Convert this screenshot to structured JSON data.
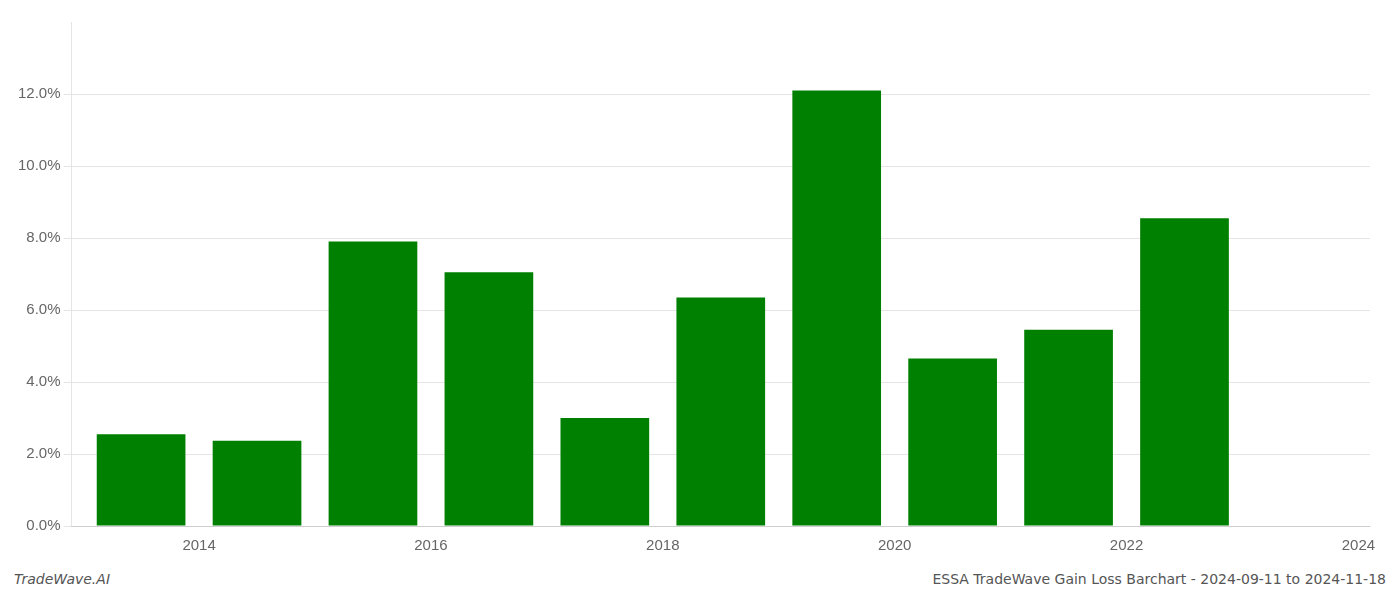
{
  "chart_data": {
    "type": "bar",
    "x": [
      2014,
      2015,
      2016,
      2017,
      2018,
      2019,
      2020,
      2021,
      2022,
      2023
    ],
    "values": [
      0.0255,
      0.0237,
      0.079,
      0.0705,
      0.03,
      0.0635,
      0.121,
      0.0465,
      0.0545,
      0.0855
    ],
    "color": "#008000",
    "xlim": [
      2013.4,
      2024.6
    ],
    "xticks": [
      {
        "value": 2014.5,
        "label": "2014"
      },
      {
        "value": 2016.5,
        "label": "2016"
      },
      {
        "value": 2018.5,
        "label": "2018"
      },
      {
        "value": 2020.5,
        "label": "2020"
      },
      {
        "value": 2022.5,
        "label": "2022"
      },
      {
        "value": 2024.5,
        "label": "2024"
      }
    ],
    "ylim": [
      0,
      0.14
    ],
    "yticks": [
      {
        "value": 0.0,
        "label": "0.0%"
      },
      {
        "value": 0.02,
        "label": "2.0%"
      },
      {
        "value": 0.04,
        "label": "4.0%"
      },
      {
        "value": 0.06,
        "label": "6.0%"
      },
      {
        "value": 0.08,
        "label": "8.0%"
      },
      {
        "value": 0.1,
        "label": "10.0%"
      },
      {
        "value": 0.12,
        "label": "12.0%"
      }
    ],
    "grid": "y",
    "annotations": [
      "TradeWave.AI",
      "ESSA TradeWave Gain Loss Barchart - 2024-09-11 to 2024-11-18"
    ]
  }
}
